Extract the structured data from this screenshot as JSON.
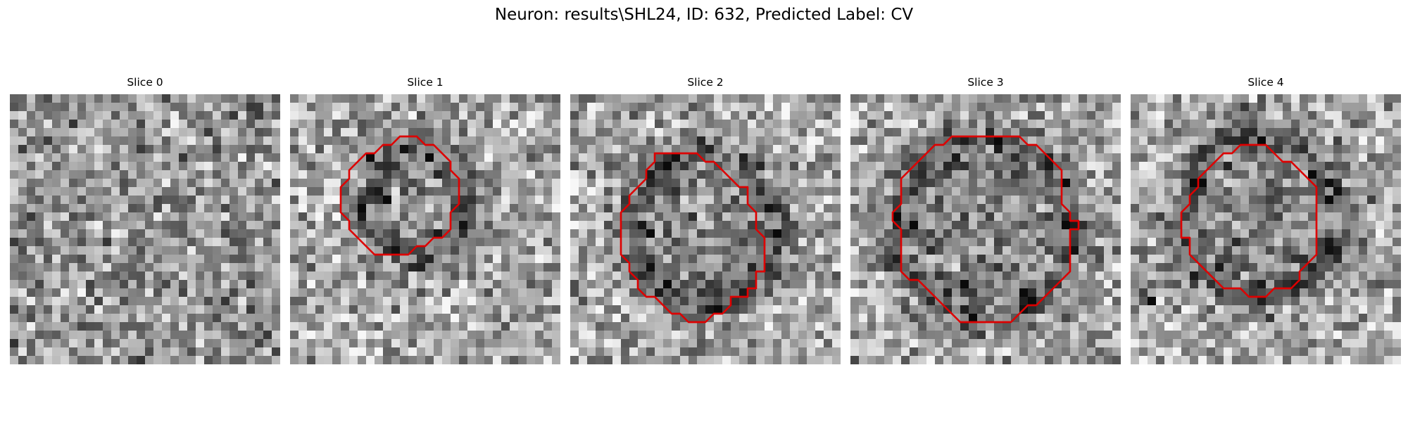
{
  "figure": {
    "title": "Neuron: results\\SHL24, ID: 632, Predicted Label: CV"
  },
  "chart_data": {
    "type": "heatmap",
    "colormap": "gray",
    "grid_size": 32,
    "outline_color": "#dd0000",
    "panels": [
      {
        "label": "Slice 0",
        "seed": 11,
        "blob": null,
        "contour": null
      },
      {
        "label": "Slice 1",
        "seed": 23,
        "blob": {
          "cx": 15,
          "cy": 13,
          "r": 5.5,
          "dark_ring": [
            [
              10,
              11
            ],
            [
              11,
              12
            ],
            [
              15,
              20
            ],
            [
              14,
              20
            ],
            [
              9,
              7
            ],
            [
              16,
              7
            ],
            [
              8,
              13
            ]
          ]
        },
        "contour": [
          [
            14,
            5
          ],
          [
            15,
            5
          ],
          [
            16,
            6
          ],
          [
            17,
            6
          ],
          [
            18,
            7
          ],
          [
            19,
            8
          ],
          [
            19,
            9
          ],
          [
            20,
            10
          ],
          [
            20,
            13
          ],
          [
            19,
            14
          ],
          [
            19,
            16
          ],
          [
            18,
            17
          ],
          [
            17,
            17
          ],
          [
            16,
            18
          ],
          [
            15,
            18
          ],
          [
            14,
            19
          ],
          [
            10,
            19
          ],
          [
            9,
            18
          ],
          [
            8,
            17
          ],
          [
            7,
            16
          ],
          [
            7,
            15
          ],
          [
            6,
            14
          ],
          [
            6,
            11
          ],
          [
            7,
            10
          ],
          [
            7,
            9
          ],
          [
            8,
            8
          ],
          [
            9,
            7
          ],
          [
            10,
            7
          ],
          [
            11,
            6
          ],
          [
            12,
            6
          ],
          [
            13,
            5
          ]
        ]
      },
      {
        "label": "Slice 2",
        "seed": 37,
        "blob": {
          "cx": 16,
          "cy": 16,
          "r": 8.5,
          "dark_ring": [
            [
              15,
              5
            ],
            [
              16,
              6
            ],
            [
              17,
              25
            ],
            [
              16,
              25
            ],
            [
              9,
              16
            ],
            [
              24,
              16
            ],
            [
              11,
              8
            ]
          ]
        },
        "contour": [
          [
            10,
            7
          ],
          [
            15,
            7
          ],
          [
            16,
            8
          ],
          [
            17,
            8
          ],
          [
            18,
            9
          ],
          [
            19,
            10
          ],
          [
            20,
            11
          ],
          [
            21,
            11
          ],
          [
            21,
            13
          ],
          [
            22,
            14
          ],
          [
            22,
            16
          ],
          [
            23,
            17
          ],
          [
            23,
            21
          ],
          [
            22,
            21
          ],
          [
            22,
            23
          ],
          [
            21,
            23
          ],
          [
            21,
            24
          ],
          [
            19,
            24
          ],
          [
            19,
            25
          ],
          [
            18,
            26
          ],
          [
            17,
            26
          ],
          [
            16,
            27
          ],
          [
            14,
            27
          ],
          [
            13,
            26
          ],
          [
            12,
            26
          ],
          [
            11,
            25
          ],
          [
            10,
            24
          ],
          [
            9,
            24
          ],
          [
            8,
            23
          ],
          [
            8,
            22
          ],
          [
            7,
            21
          ],
          [
            7,
            20
          ],
          [
            6,
            19
          ],
          [
            6,
            14
          ],
          [
            7,
            13
          ],
          [
            7,
            12
          ],
          [
            8,
            11
          ],
          [
            9,
            10
          ],
          [
            9,
            9
          ],
          [
            10,
            8
          ]
        ]
      },
      {
        "label": "Slice 3",
        "seed": 53,
        "blob": {
          "cx": 16,
          "cy": 16,
          "r": 10.5,
          "dark_ring": [
            [
              5,
              14
            ],
            [
              16,
              5
            ],
            [
              17,
              5
            ],
            [
              20,
              23
            ],
            [
              21,
              23
            ],
            [
              13,
              22
            ],
            [
              25,
              15
            ],
            [
              7,
              15
            ]
          ]
        },
        "contour": [
          [
            12,
            5
          ],
          [
            20,
            5
          ],
          [
            21,
            6
          ],
          [
            22,
            6
          ],
          [
            23,
            7
          ],
          [
            24,
            8
          ],
          [
            25,
            9
          ],
          [
            25,
            13
          ],
          [
            26,
            14
          ],
          [
            26,
            15
          ],
          [
            27,
            15
          ],
          [
            27,
            16
          ],
          [
            26,
            16
          ],
          [
            26,
            21
          ],
          [
            25,
            22
          ],
          [
            24,
            23
          ],
          [
            23,
            24
          ],
          [
            22,
            25
          ],
          [
            21,
            25
          ],
          [
            20,
            26
          ],
          [
            19,
            27
          ],
          [
            13,
            27
          ],
          [
            12,
            26
          ],
          [
            11,
            25
          ],
          [
            10,
            24
          ],
          [
            9,
            23
          ],
          [
            8,
            22
          ],
          [
            7,
            22
          ],
          [
            6,
            21
          ],
          [
            6,
            16
          ],
          [
            5,
            15
          ],
          [
            5,
            14
          ],
          [
            6,
            13
          ],
          [
            6,
            10
          ],
          [
            7,
            9
          ],
          [
            8,
            8
          ],
          [
            9,
            7
          ],
          [
            10,
            6
          ],
          [
            11,
            6
          ]
        ]
      },
      {
        "label": "Slice 4",
        "seed": 71,
        "blob": {
          "cx": 15.5,
          "cy": 14.5,
          "r": 9.5,
          "dark_ring": [
            [
              22,
              10
            ],
            [
              22,
              11
            ],
            [
              23,
              12
            ],
            [
              21,
              9
            ],
            [
              11,
              8
            ],
            [
              15,
              5
            ],
            [
              1,
              23
            ],
            [
              2,
              24
            ],
            [
              8,
              10
            ]
          ]
        },
        "contour": [
          [
            11,
            7
          ],
          [
            12,
            7
          ],
          [
            13,
            6
          ],
          [
            16,
            6
          ],
          [
            17,
            7
          ],
          [
            18,
            8
          ],
          [
            19,
            8
          ],
          [
            20,
            9
          ],
          [
            21,
            10
          ],
          [
            22,
            11
          ],
          [
            22,
            19
          ],
          [
            21,
            20
          ],
          [
            20,
            21
          ],
          [
            20,
            22
          ],
          [
            19,
            23
          ],
          [
            17,
            23
          ],
          [
            16,
            24
          ],
          [
            14,
            24
          ],
          [
            13,
            23
          ],
          [
            11,
            23
          ],
          [
            10,
            22
          ],
          [
            9,
            21
          ],
          [
            8,
            20
          ],
          [
            7,
            19
          ],
          [
            7,
            17
          ],
          [
            6,
            17
          ],
          [
            6,
            14
          ],
          [
            7,
            13
          ],
          [
            7,
            12
          ],
          [
            8,
            11
          ],
          [
            8,
            10
          ],
          [
            9,
            9
          ],
          [
            10,
            8
          ]
        ]
      }
    ]
  }
}
